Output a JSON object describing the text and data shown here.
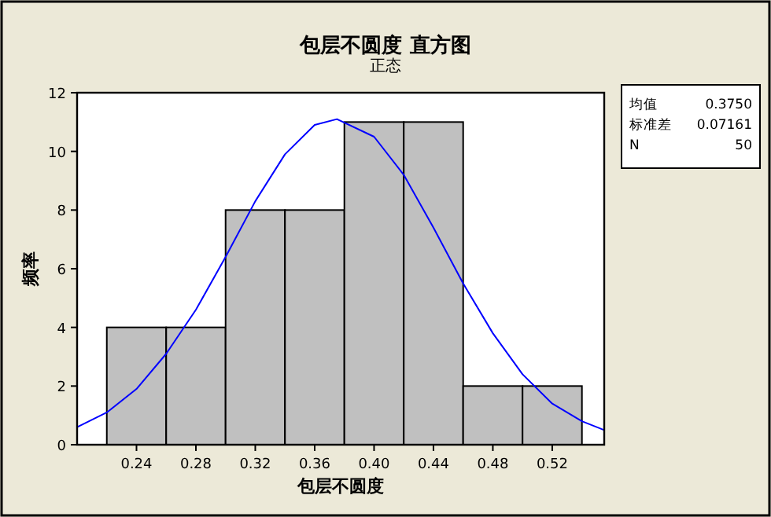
{
  "chart_data": {
    "type": "histogram",
    "title": "包层不圆度  直方图",
    "subtitle": "正态",
    "xlabel": "包层不圆度",
    "ylabel": "频率",
    "bins": [
      0.22,
      0.26,
      0.3,
      0.34,
      0.38,
      0.42,
      0.46,
      0.5,
      0.54
    ],
    "values": [
      4,
      4,
      8,
      8,
      11,
      11,
      2,
      2
    ],
    "color": "#c0c0c0",
    "series": [
      {
        "type": "line",
        "color": "#0000ff",
        "x": [
          0.2,
          0.22,
          0.24,
          0.26,
          0.28,
          0.3,
          0.32,
          0.34,
          0.36,
          0.375,
          0.4,
          0.42,
          0.44,
          0.46,
          0.48,
          0.5,
          0.52,
          0.54,
          0.555
        ],
        "values": [
          0.6,
          1.1,
          1.9,
          3.1,
          4.6,
          6.4,
          8.3,
          9.9,
          10.9,
          11.1,
          10.5,
          9.2,
          7.4,
          5.5,
          3.8,
          2.4,
          1.4,
          0.8,
          0.5
        ]
      }
    ],
    "xlim": [
      0.2,
      0.555
    ],
    "xticks": [
      0.24,
      0.28,
      0.32,
      0.36,
      {
        "value": 0.4,
        "label": "0.40"
      },
      0.44,
      0.48,
      0.52
    ],
    "ylim": [
      0,
      12
    ],
    "yticks": [
      0,
      2,
      4,
      6,
      8,
      10,
      12
    ],
    "annotations": [
      "均值 0.3750",
      "标准差 0.07161",
      "N 50"
    ],
    "grid": false
  }
}
